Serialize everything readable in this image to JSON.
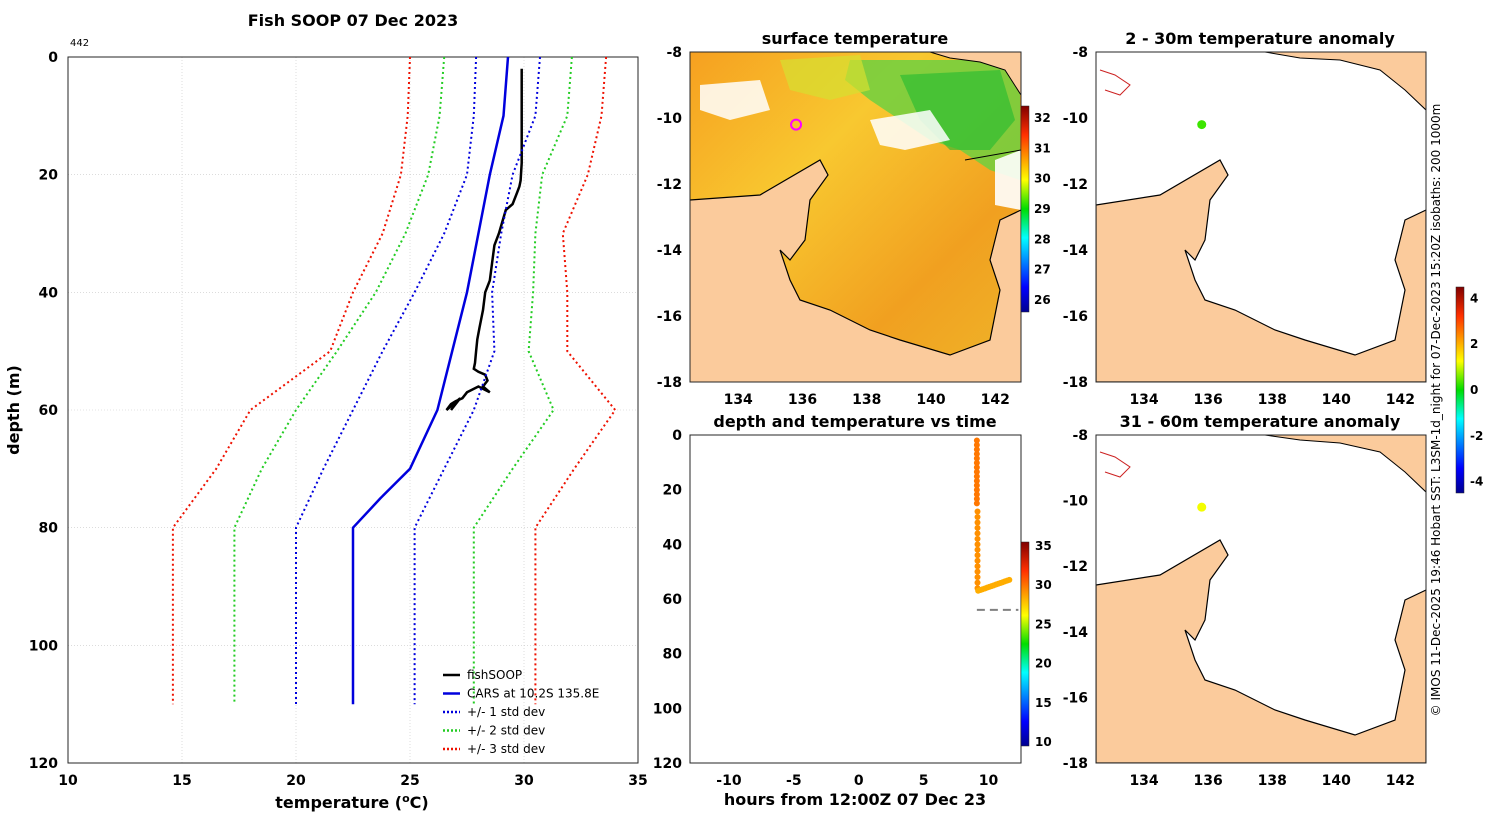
{
  "meta_note": "442",
  "credit": "© IMOS 11-Dec-2025 19:46 Hobart SST: L3SM-1d_night for 07-Dec-2023 15:20Z isobaths: 200  1000m",
  "colors": {
    "fish": "#000000",
    "cars": "#0000dd",
    "std1": "#0000dd",
    "std2": "#22cc22",
    "std3": "#ee1100",
    "land": "#fbcb9c",
    "coast": "#000000",
    "grid": "#c8c8c8",
    "dashed": "#808080"
  },
  "chart_data": [
    {
      "id": "profile",
      "type": "line",
      "title": "Fish SOOP 07 Dec 2023",
      "xlabel": "temperature (",
      "xlabel_sup": "o",
      "xlabel_end": "C)",
      "ylabel": "depth (m)",
      "xlim": [
        10,
        35
      ],
      "ylim": [
        0,
        120
      ],
      "y_reversed": true,
      "xticks": [
        10,
        15,
        20,
        25,
        30,
        35
      ],
      "yticks": [
        0,
        20,
        40,
        60,
        80,
        100,
        120
      ],
      "grid": true,
      "legend_position": "bottom-right",
      "series": [
        {
          "name": "fishSOOP",
          "style": "solid",
          "color": "#000000",
          "x": [
            29.9,
            29.9,
            29.9,
            29.85,
            29.8,
            29.7,
            29.5,
            29.2,
            28.9,
            28.7,
            28.6,
            28.5,
            28.3,
            28.2,
            28.05,
            27.95,
            27.9,
            27.85,
            27.8,
            28.0,
            28.3,
            28.4,
            28.2,
            28.5,
            28.0,
            27.5,
            27.3,
            27.0,
            26.8,
            26.6,
            26.9,
            27.2,
            26.8
          ],
          "y": [
            2,
            10,
            18,
            21,
            22,
            23,
            25,
            26,
            30,
            32,
            35,
            38,
            40,
            43,
            46,
            48,
            50,
            52,
            53,
            53.5,
            54,
            55,
            56,
            57,
            56,
            57,
            58,
            58.5,
            59,
            60,
            59,
            58,
            60
          ]
        },
        {
          "name": "CARS at 10.2S 135.8E",
          "style": "solid",
          "color": "#0000dd",
          "x": [
            29.3,
            29.1,
            28.5,
            27.5,
            26.2,
            25.0,
            23.7,
            22.5,
            22.5,
            22.5
          ],
          "y": [
            0,
            10,
            20,
            40,
            60,
            70,
            75,
            80,
            100,
            110
          ]
        },
        {
          "name": "+/- 1 std dev",
          "style": "dotted",
          "color": "#0000dd",
          "x": [
            27.9,
            27.8,
            27.5,
            26.5,
            25.2,
            23.8,
            22.5,
            21.2,
            20.0,
            20.0,
            20.0
          ],
          "y": [
            0,
            10,
            20,
            30,
            40,
            50,
            60,
            70,
            80,
            100,
            110
          ]
        },
        {
          "name": "+/- 1 std dev upper",
          "style": "dotted",
          "color": "#0000dd",
          "legend": false,
          "x": [
            30.7,
            30.5,
            29.5,
            29.0,
            28.6,
            28.7,
            27.8,
            26.5,
            25.2,
            25.2,
            25.2
          ],
          "y": [
            0,
            10,
            20,
            30,
            40,
            50,
            60,
            70,
            80,
            100,
            110
          ]
        },
        {
          "name": "+/- 2 std dev",
          "style": "dotted",
          "color": "#22cc22",
          "x": [
            26.5,
            26.3,
            25.8,
            24.8,
            23.5,
            21.8,
            20.0,
            18.5,
            17.3,
            17.3,
            17.3
          ],
          "y": [
            0,
            10,
            20,
            30,
            40,
            50,
            60,
            70,
            80,
            100,
            110
          ]
        },
        {
          "name": "+/- 2 std dev upper",
          "style": "dotted",
          "color": "#22cc22",
          "legend": false,
          "x": [
            32.1,
            31.9,
            30.8,
            30.5,
            30.4,
            30.2,
            31.3,
            29.5,
            27.8,
            27.8,
            27.8
          ],
          "y": [
            0,
            10,
            20,
            30,
            40,
            50,
            60,
            70,
            80,
            100,
            110
          ]
        },
        {
          "name": "+/- 3 std dev",
          "style": "dotted",
          "color": "#ee1100",
          "x": [
            25.0,
            24.9,
            24.6,
            23.8,
            22.5,
            21.5,
            18.0,
            16.5,
            14.6,
            14.6,
            14.6
          ],
          "y": [
            0,
            10,
            20,
            30,
            40,
            50,
            60,
            70,
            80,
            100,
            110
          ]
        },
        {
          "name": "+/- 3 std dev upper",
          "style": "dotted",
          "color": "#ee1100",
          "legend": false,
          "x": [
            33.6,
            33.4,
            32.8,
            31.7,
            31.9,
            31.9,
            34.0,
            32.2,
            30.5,
            30.5,
            30.5
          ],
          "y": [
            0,
            10,
            20,
            30,
            40,
            50,
            60,
            70,
            80,
            100,
            110
          ]
        }
      ]
    },
    {
      "id": "sst_map",
      "type": "heatmap",
      "title": "surface temperature",
      "xlim": [
        132.5,
        142.8
      ],
      "ylim": [
        -18,
        -8
      ],
      "xticks": [
        134,
        136,
        138,
        140,
        142
      ],
      "yticks": [
        -8,
        -10,
        -12,
        -14,
        -16,
        -18
      ],
      "colorbar_ticks": [
        26,
        27,
        28,
        29,
        30,
        31,
        32
      ],
      "colorbar_range": [
        25.6,
        32.4
      ],
      "marker": {
        "lon": 135.8,
        "lat": -10.2
      }
    },
    {
      "id": "time_series",
      "type": "scatter",
      "title": "depth and temperature vs time",
      "xlabel": "hours from 12:00Z 07 Dec 23",
      "xlim": [
        -13,
        12.5
      ],
      "ylim": [
        0,
        120
      ],
      "y_reversed": true,
      "xticks": [
        -10,
        -5,
        0,
        5,
        10
      ],
      "yticks": [
        0,
        20,
        40,
        60,
        80,
        100,
        120
      ],
      "colorbar_ticks": [
        10,
        15,
        20,
        25,
        30,
        35
      ],
      "colorbar_range": [
        9.5,
        35.5
      ],
      "bottom_depth": 64,
      "segments": [
        {
          "x": [
            9.1,
            9.1
          ],
          "y": [
            2,
            25
          ],
          "t": 29.9
        },
        {
          "x": [
            9.15,
            9.15
          ],
          "y": [
            28,
            56
          ],
          "t": 29.2
        },
        {
          "x": [
            9.2,
            11.6
          ],
          "y": [
            57,
            53
          ],
          "t": 28.4
        }
      ]
    },
    {
      "id": "anom_2_30",
      "type": "scatter",
      "title": "2 - 30m temperature anomaly",
      "xlim": [
        132.5,
        142.8
      ],
      "ylim": [
        -18,
        -8
      ],
      "xticks": [
        134,
        136,
        138,
        140,
        142
      ],
      "yticks": [
        -8,
        -10,
        -12,
        -14,
        -16,
        -18
      ],
      "point": {
        "lon": 135.8,
        "lat": -10.2,
        "anomaly": 0.3
      }
    },
    {
      "id": "anom_31_60",
      "type": "scatter",
      "title": "31 - 60m temperature anomaly",
      "xlim": [
        132.5,
        142.8
      ],
      "ylim": [
        -18,
        -8
      ],
      "xticks": [
        134,
        136,
        138,
        140,
        142
      ],
      "yticks": [
        -8,
        -10,
        -12,
        -14,
        -16,
        -18
      ],
      "point": {
        "lon": 135.8,
        "lat": -10.2,
        "anomaly": 1.2
      },
      "colorbar_ticks": [
        -4,
        -2,
        0,
        2,
        4
      ],
      "colorbar_range": [
        -4.5,
        4.5
      ]
    }
  ]
}
